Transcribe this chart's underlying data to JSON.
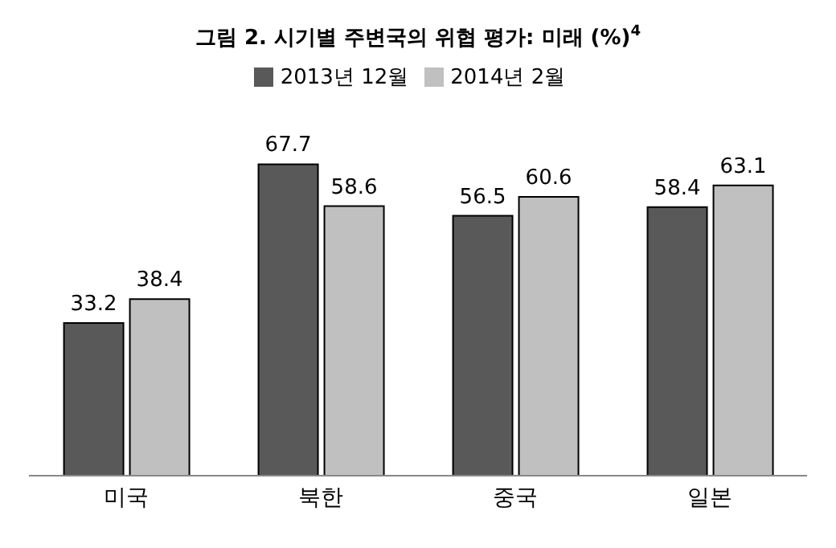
{
  "chart_data": {
    "type": "bar",
    "title": "그림 2. 시기별 주변국의 위협 평가: 미래 (%)$^{4}$",
    "categories": [
      "미국",
      "북한",
      "중국",
      "일본"
    ],
    "series": [
      {
        "name": "2013년 12월",
        "color": "#595959",
        "values": [
          33.2,
          67.7,
          56.5,
          58.4
        ]
      },
      {
        "name": "2014년 2월",
        "color": "#c0c0c0",
        "values": [
          38.4,
          58.6,
          60.6,
          63.1
        ]
      }
    ],
    "data_labels": true,
    "legend": "top",
    "tick_labels": "x"
  }
}
